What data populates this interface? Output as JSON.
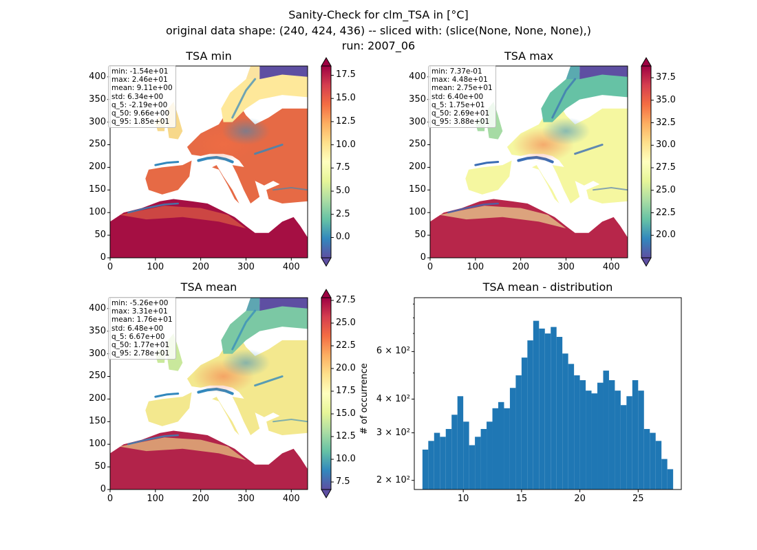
{
  "suptitle": {
    "line1": "Sanity-Check for clm_TSA in [°C]",
    "line2": "original data shape: (240, 424, 436) -- sliced with: (slice(None, None, None),)",
    "line3": "run: 2007_06"
  },
  "colors": {
    "colormap": [
      "#5e4fa2",
      "#3288bd",
      "#66c2a5",
      "#abdda4",
      "#e6f598",
      "#ffffbf",
      "#fee08b",
      "#fdae61",
      "#f46d43",
      "#d53e4f",
      "#9e0142"
    ],
    "hist_bar": "#1f77b4"
  },
  "panels": [
    {
      "title": "TSA min",
      "stats": [
        "min: -1.54e+01",
        "max: 2.46e+01",
        "mean: 9.11e+00",
        "std: 6.34e+00",
        "q_5: -2.19e+00",
        "q_50: 9.66e+00",
        "q_95: 1.85e+01"
      ],
      "colorbar_ticks": [
        "0.0",
        "2.5",
        "5.0",
        "7.5",
        "10.0",
        "12.5",
        "15.0",
        "17.5"
      ],
      "x_ticks": [
        "0",
        "100",
        "200",
        "300",
        "400"
      ],
      "y_ticks": [
        "0",
        "50",
        "100",
        "150",
        "200",
        "250",
        "300",
        "350",
        "400"
      ]
    },
    {
      "title": "TSA max",
      "stats": [
        "min: 7.37e-01",
        "max: 4.48e+01",
        "mean: 2.75e+01",
        "std: 6.40e+00",
        "q_5: 1.75e+01",
        "q_50: 2.69e+01",
        "q_95: 3.88e+01"
      ],
      "colorbar_ticks": [
        "20.0",
        "22.5",
        "25.0",
        "27.5",
        "30.0",
        "32.5",
        "35.0",
        "37.5"
      ],
      "x_ticks": [
        "0",
        "100",
        "200",
        "300",
        "400"
      ],
      "y_ticks": [
        "0",
        "50",
        "100",
        "150",
        "200",
        "250",
        "300",
        "350",
        "400"
      ]
    },
    {
      "title": "TSA mean",
      "stats": [
        "min: -5.26e+00",
        "max: 3.31e+01",
        "mean: 1.76e+01",
        "std: 6.48e+00",
        "q_5: 6.67e+00",
        "q_50: 1.77e+01",
        "q_95: 2.78e+01"
      ],
      "colorbar_ticks": [
        "7.5",
        "10.0",
        "12.5",
        "15.0",
        "17.5",
        "20.0",
        "22.5",
        "25.0",
        "27.5"
      ],
      "x_ticks": [
        "0",
        "100",
        "200",
        "300",
        "400"
      ],
      "y_ticks": [
        "0",
        "50",
        "100",
        "150",
        "200",
        "250",
        "300",
        "350",
        "400"
      ]
    }
  ],
  "chart_data": [
    {
      "type": "heatmap",
      "title": "TSA min",
      "xlim": [
        0,
        436
      ],
      "ylim": [
        0,
        424
      ],
      "colorbar_range": [
        -2.19,
        18.5
      ],
      "colorbar_extend": "both",
      "colormap": "Spectral_r"
    },
    {
      "type": "heatmap",
      "title": "TSA max",
      "xlim": [
        0,
        436
      ],
      "ylim": [
        0,
        424
      ],
      "colorbar_range": [
        17.5,
        38.8
      ],
      "colorbar_extend": "both",
      "colormap": "Spectral_r"
    },
    {
      "type": "heatmap",
      "title": "TSA mean",
      "xlim": [
        0,
        436
      ],
      "ylim": [
        0,
        424
      ],
      "colorbar_range": [
        6.67,
        27.8
      ],
      "colorbar_extend": "both",
      "colormap": "Spectral_r"
    },
    {
      "type": "bar",
      "title": "TSA mean - distribution",
      "xlabel": "",
      "ylabel": "# of occurrence",
      "yscale": "log",
      "xlim": [
        5.8,
        28.7
      ],
      "ylim": [
        185,
        950
      ],
      "x_ticks": [
        "10",
        "15",
        "20",
        "25"
      ],
      "y_ticks": [
        "2 × 10²",
        "3 × 10²",
        "4 × 10²",
        "6 × 10²"
      ],
      "bins_x": [
        6.75,
        7.25,
        7.75,
        8.25,
        8.75,
        9.25,
        9.75,
        10.25,
        10.75,
        11.25,
        11.75,
        12.25,
        12.75,
        13.25,
        13.75,
        14.25,
        14.75,
        15.25,
        15.75,
        16.25,
        16.75,
        17.25,
        17.75,
        18.25,
        18.75,
        19.25,
        19.75,
        20.25,
        20.75,
        21.25,
        21.75,
        22.25,
        22.75,
        23.25,
        23.75,
        24.25,
        24.75,
        25.25,
        25.75,
        26.25,
        26.75,
        27.25,
        27.75
      ],
      "values": [
        260,
        280,
        300,
        290,
        310,
        350,
        410,
        330,
        270,
        290,
        310,
        330,
        370,
        390,
        370,
        440,
        490,
        570,
        660,
        780,
        730,
        700,
        740,
        680,
        590,
        540,
        490,
        470,
        430,
        420,
        460,
        510,
        470,
        430,
        380,
        410,
        470,
        430,
        310,
        300,
        280,
        240,
        220
      ],
      "bin_width": 0.5
    }
  ]
}
